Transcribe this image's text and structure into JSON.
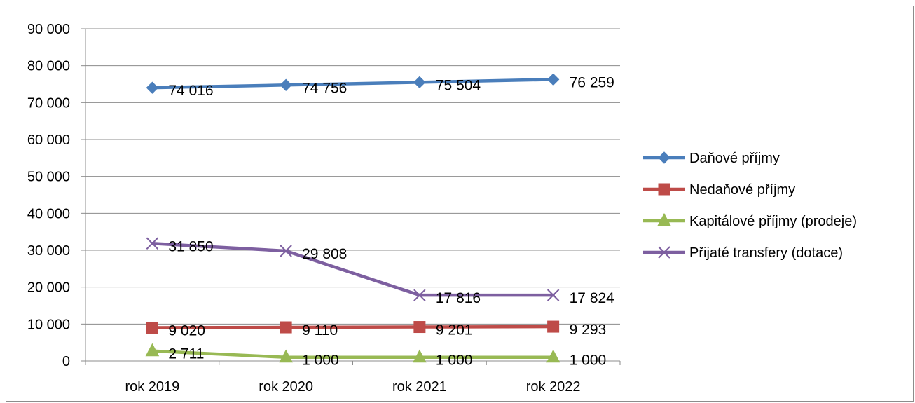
{
  "chart_data": {
    "type": "line",
    "title": "",
    "xlabel": "",
    "ylabel": "",
    "categories": [
      "rok 2019",
      "rok 2020",
      "rok 2021",
      "rok 2022"
    ],
    "ylim": [
      0,
      90000
    ],
    "yticks": [
      0,
      10000,
      20000,
      30000,
      40000,
      50000,
      60000,
      70000,
      80000,
      90000
    ],
    "ytick_labels": [
      "0",
      "10 000",
      "20 000",
      "30 000",
      "40 000",
      "50 000",
      "60 000",
      "70 000",
      "80 000",
      "90 000"
    ],
    "grid": true,
    "legend_position": "right",
    "series": [
      {
        "name": "Daňové příjmy",
        "color": "#4a7ebb",
        "marker": "diamond",
        "values": [
          74016,
          74756,
          75504,
          76259
        ],
        "labels": [
          "74 016",
          "74 756",
          "75 504",
          "76 259"
        ]
      },
      {
        "name": "Nedaňové příjmy",
        "color": "#be4b48",
        "marker": "square",
        "values": [
          9020,
          9110,
          9201,
          9293
        ],
        "labels": [
          "9 020",
          "9 110",
          "9 201",
          "9 293"
        ]
      },
      {
        "name": "Kapitálové příjmy (prodeje)",
        "color": "#98b954",
        "marker": "triangle",
        "values": [
          2711,
          1000,
          1000,
          1000
        ],
        "labels": [
          "2 711",
          "1 000",
          "1 000",
          "1 000"
        ]
      },
      {
        "name": "Přijaté transfery (dotace)",
        "color": "#7d5fa0",
        "marker": "x",
        "values": [
          31850,
          29808,
          17816,
          17824
        ],
        "labels": [
          "31 850",
          "29 808",
          "17 816",
          "17 824"
        ]
      }
    ]
  }
}
